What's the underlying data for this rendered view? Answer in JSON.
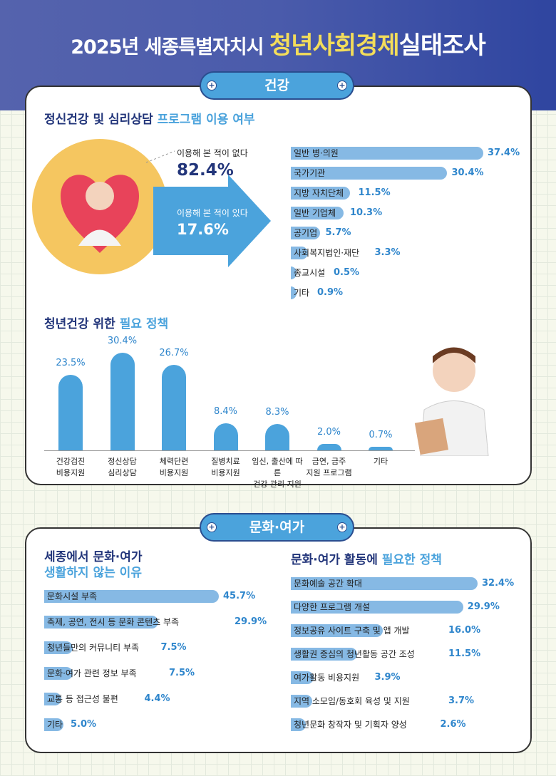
{
  "header": {
    "title_prefix": "2025년 세종특별자치시",
    "title_highlight": "청년사회경제",
    "title_suffix": "실태조사"
  },
  "health": {
    "pill": "건강",
    "section1_title": "정신건강 및 심리상담",
    "section1_title_hl": "프로그램 이용 여부",
    "never_label": "이용해 본 적이 없다",
    "never_value": "82.4%",
    "used_label": "이용해 본 적이 있다",
    "used_value": "17.6%",
    "section2_title": "청년건강 위한",
    "section2_title_hl": "필요 정책"
  },
  "culture": {
    "pill": "문화·여가",
    "left_title_line1": "세종에서 문화·여가",
    "left_title_line2": "생활하지 않는 이유",
    "right_title": "문화·여가 활동에",
    "right_title_hl": "필요한 정책"
  },
  "colors": {
    "accent": "#4ba3dc",
    "navy": "#22357a",
    "bar_light": "#86b9e4",
    "highlight": "#f3dd5a",
    "pie_yellow": "#f5c660"
  },
  "chart_data": [
    {
      "type": "pie",
      "values": [
        82.4,
        17.6
      ],
      "labels": [
        "이용해 본 적이 없다",
        "이용해 본 적이 있다"
      ],
      "unit": "%"
    },
    {
      "type": "bar",
      "orientation": "horizontal",
      "categories": [
        "일반 병·의원",
        "국가기관",
        "지방 자치단체",
        "일반 기업체",
        "공기업",
        "사회복지법인·재단",
        "종교시설",
        "기타"
      ],
      "values": [
        37.4,
        30.4,
        11.5,
        10.3,
        5.7,
        3.3,
        0.5,
        0.9
      ],
      "labels": [
        "37.4%",
        "30.4%",
        "11.5%",
        "10.3%",
        "5.7%",
        "3.3%",
        "0.5%",
        "0.9%"
      ]
    },
    {
      "type": "bar",
      "categories": [
        "건강검진\n비용지원",
        "정신상담\n심리상담",
        "체력단련\n비용지원",
        "질병치료\n비용지원",
        "임신, 출산에 따른\n건강 관리 지원",
        "금연, 금주\n지원 프로그램",
        "기타"
      ],
      "values": [
        23.5,
        30.4,
        26.7,
        8.4,
        8.3,
        2.0,
        0.7
      ],
      "labels": [
        "23.5%",
        "30.4%",
        "26.7%",
        "8.4%",
        "8.3%",
        "2.0%",
        "0.7%"
      ]
    },
    {
      "type": "bar",
      "orientation": "horizontal",
      "categories": [
        "문화시설 부족",
        "축제, 공연, 전시 등 문화 콘텐츠 부족",
        "청년들만의 커뮤니티 부족",
        "문화·여가 관련 정보 부족",
        "교통 등 접근성 불편",
        "기타"
      ],
      "values": [
        45.7,
        29.9,
        7.5,
        7.5,
        4.4,
        5.0
      ],
      "labels": [
        "45.7%",
        "29.9%",
        "7.5%",
        "7.5%",
        "4.4%",
        "5.0%"
      ]
    },
    {
      "type": "bar",
      "orientation": "horizontal",
      "categories": [
        "문화예술 공간 확대",
        "다양한 프로그램 개설",
        "정보공유 사이트 구축 및 앱 개발",
        "생활권 중심의 청년활동 공간 조성",
        "여가활동 비용지원",
        "지역 소모임/동호회 육성 및 지원",
        "청년문화 창작자 및 기획자 양성"
      ],
      "values": [
        32.4,
        29.9,
        16.0,
        11.5,
        3.9,
        3.7,
        2.6
      ],
      "labels": [
        "32.4%",
        "29.9%",
        "16.0%",
        "11.5%",
        "3.9%",
        "3.7%",
        "2.6%"
      ]
    }
  ]
}
